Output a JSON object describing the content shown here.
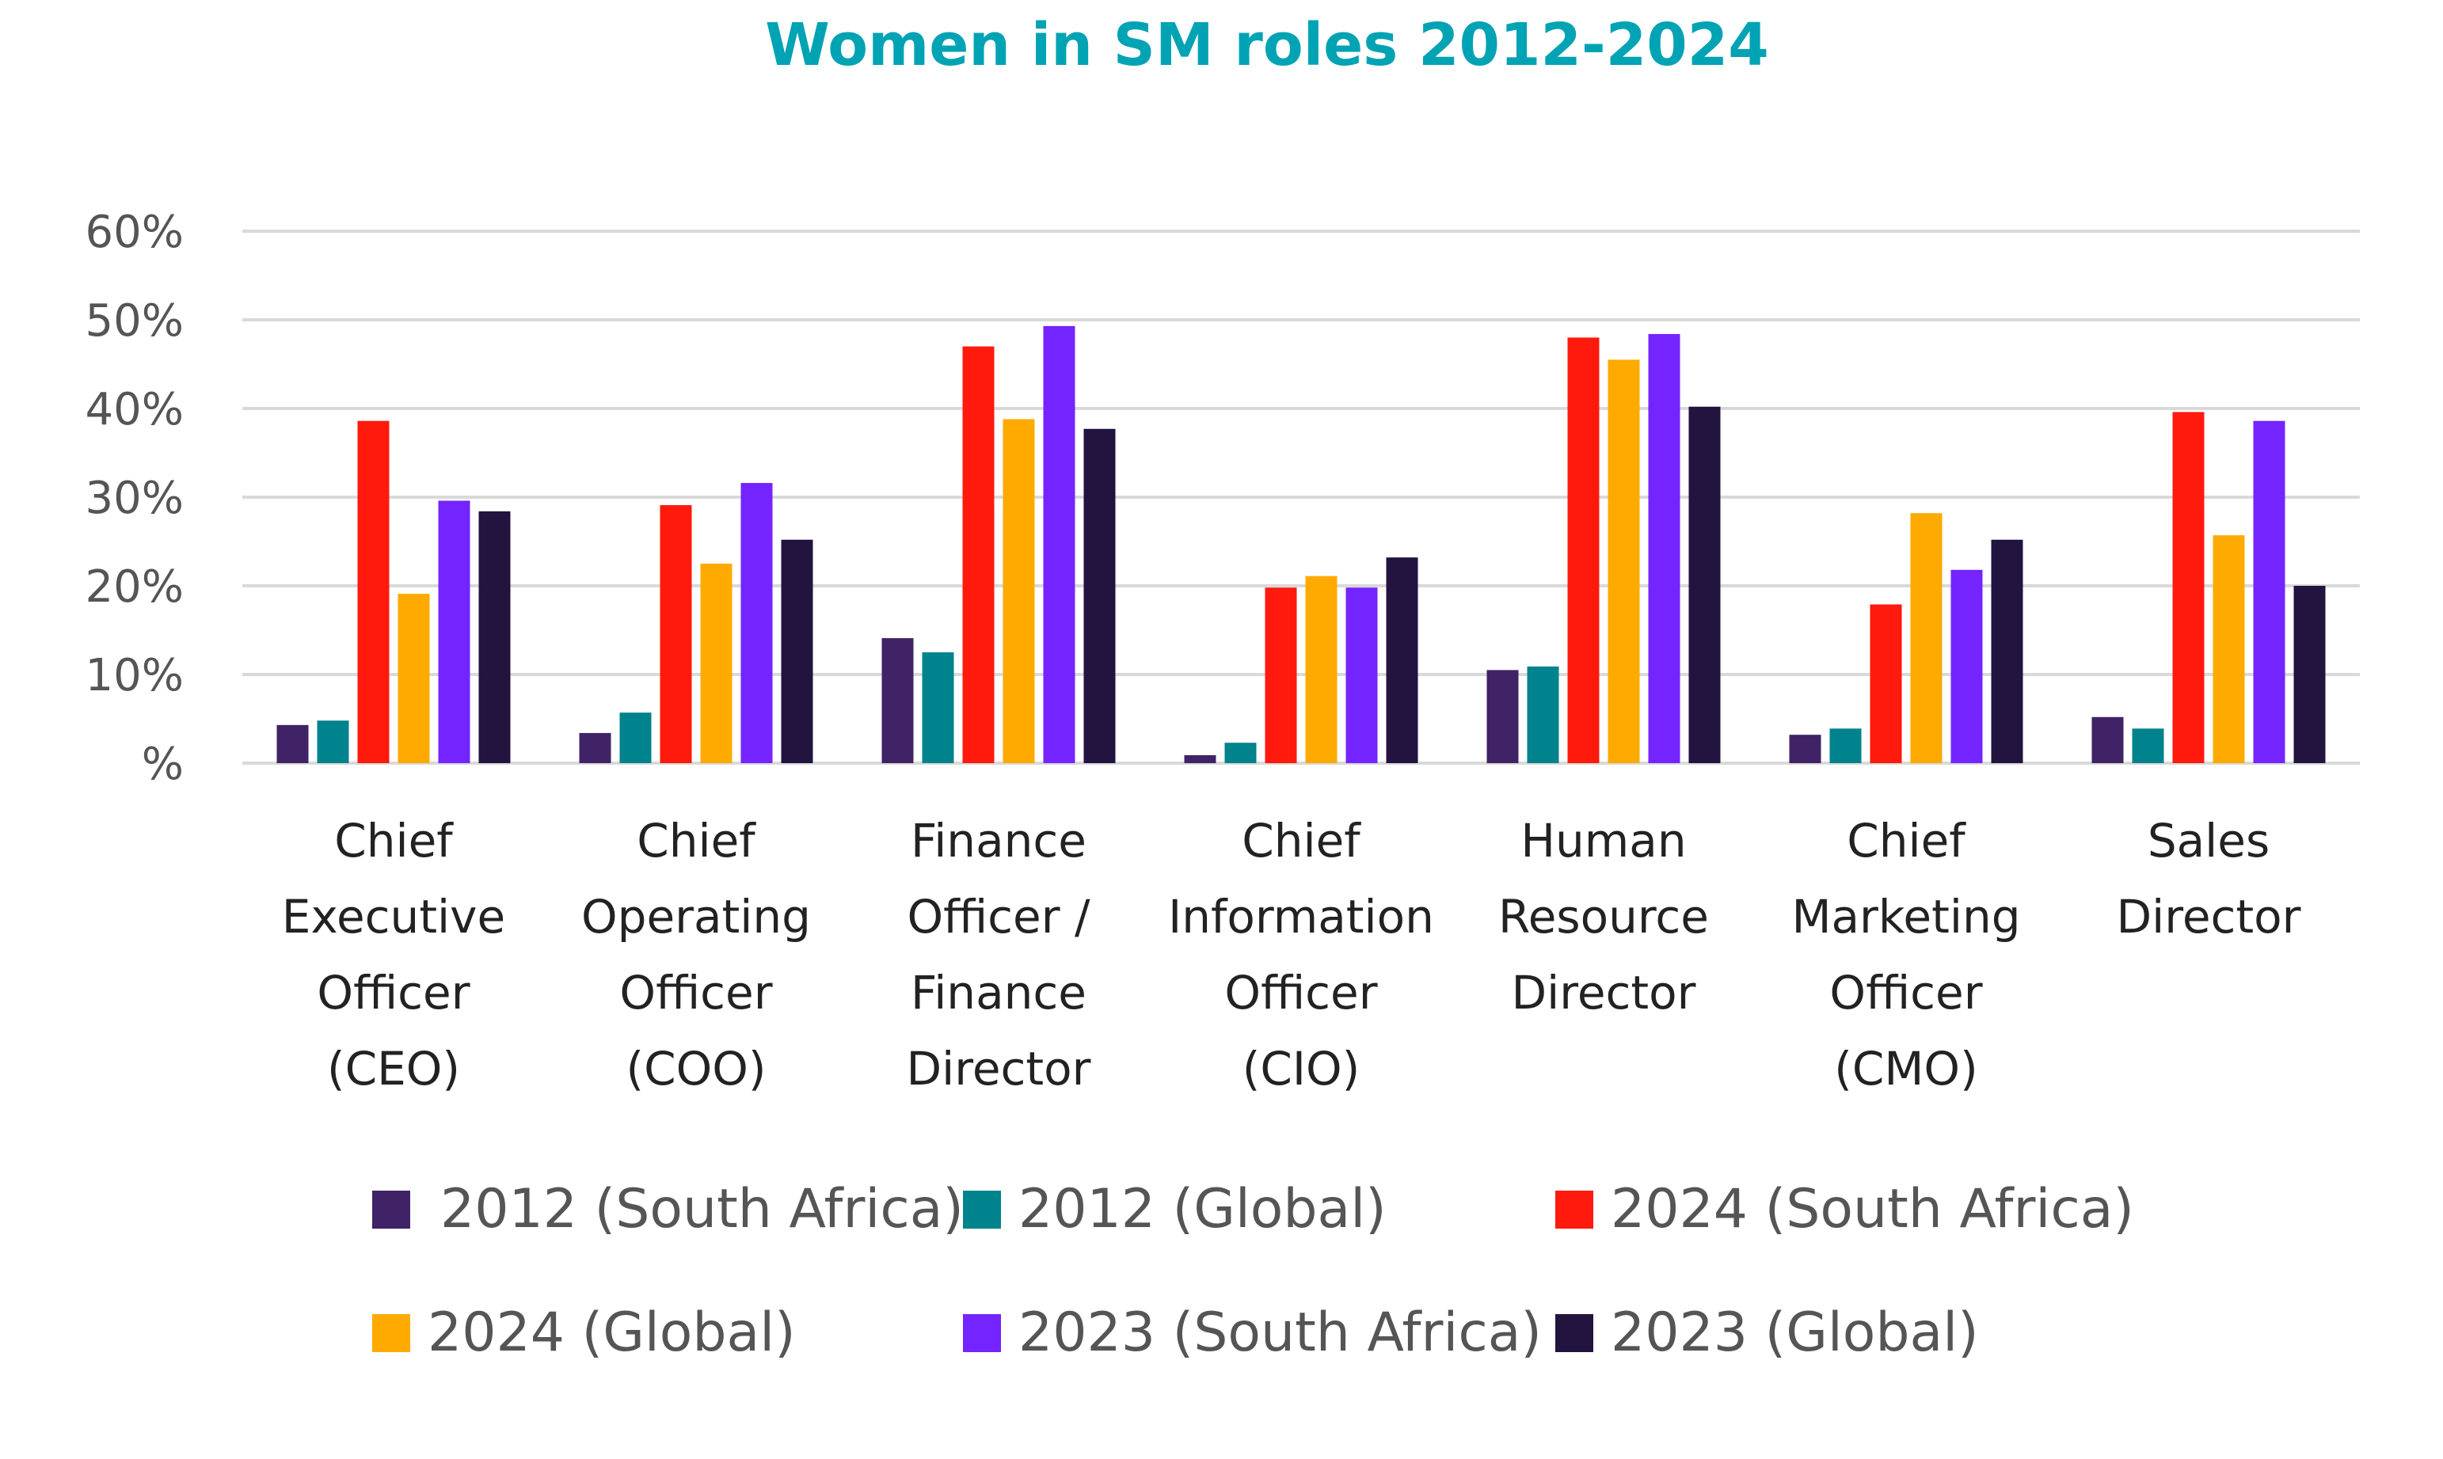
{
  "chart_data": {
    "type": "bar",
    "title": "Women in SM roles 2012-2024",
    "xlabel": "",
    "ylabel": "",
    "ylim": [
      0,
      60
    ],
    "grid": true,
    "legend_position": "bottom",
    "y_ticks": [
      "%",
      "10%",
      "20%",
      "30%",
      "40%",
      "50%",
      "60%"
    ],
    "categories": [
      [
        "Chief",
        "Executive",
        "Officer",
        "(CEO)"
      ],
      [
        "Chief",
        "Operating",
        "Officer",
        "(COO)"
      ],
      [
        "Finance",
        "Officer /",
        "Finance",
        "Director"
      ],
      [
        "Chief",
        "Information",
        "Officer",
        "(CIO)"
      ],
      [
        "Human",
        "Resource",
        "Director"
      ],
      [
        "Chief",
        "Marketing",
        "Officer",
        "(CMO)"
      ],
      [
        "Sales",
        "Director"
      ]
    ],
    "series": [
      {
        "name": "2012 (South Africa)",
        "color": "#3f2366",
        "values": [
          4.3,
          3.4,
          14.1,
          0.9,
          10.5,
          3.2,
          5.2
        ]
      },
      {
        "name": "2012 (Global)",
        "color": "#00838c",
        "values": [
          4.8,
          5.7,
          12.5,
          2.3,
          10.9,
          3.9,
          3.9
        ]
      },
      {
        "name": "2024 (South Africa)",
        "color": "#ff1a0d",
        "values": [
          38.6,
          29.1,
          47.0,
          19.8,
          48.0,
          17.9,
          39.6
        ]
      },
      {
        "name": "2024 (Global)",
        "color": "#ffaa00",
        "values": [
          19.1,
          22.5,
          38.8,
          21.1,
          45.5,
          28.2,
          25.7
        ]
      },
      {
        "name": "2023 (South Africa)",
        "color": "#7424ff",
        "values": [
          29.6,
          31.6,
          49.3,
          19.8,
          48.4,
          21.8,
          38.6
        ]
      },
      {
        "name": "2023 (Global)",
        "color": "#22133f",
        "values": [
          28.4,
          25.2,
          37.7,
          23.2,
          40.2,
          25.2,
          20.0
        ]
      }
    ]
  }
}
